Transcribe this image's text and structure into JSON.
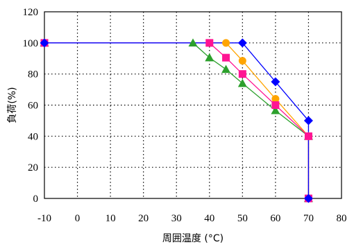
{
  "chart_data": {
    "type": "line",
    "title": "",
    "xlabel": "周囲温度 (°C)",
    "ylabel": "負荷(%)",
    "xlim": [
      -10,
      80
    ],
    "ylim": [
      0,
      120
    ],
    "x_ticks": [
      -10,
      0,
      10,
      20,
      30,
      40,
      50,
      60,
      70,
      80
    ],
    "y_ticks": [
      0,
      20,
      40,
      60,
      80,
      100,
      120
    ],
    "x_tick_labels": [
      "-10",
      "0",
      "10",
      "20",
      "30",
      "40",
      "50",
      "60",
      "70",
      "80"
    ],
    "y_tick_labels": [
      "0",
      "20",
      "40",
      "60",
      "80",
      "100",
      "120"
    ],
    "grid": "dotted",
    "legend": "none",
    "series": [
      {
        "color": "#2ca02c",
        "marker": "triangle",
        "points": [
          [
            -10,
            100
          ],
          [
            35,
            100
          ],
          [
            40,
            90.5
          ],
          [
            45,
            83
          ],
          [
            50,
            74
          ],
          [
            60,
            56.5
          ],
          [
            70,
            40
          ],
          [
            70,
            0
          ]
        ]
      },
      {
        "color": "#ffa500",
        "marker": "circle",
        "points": [
          [
            -10,
            100
          ],
          [
            45,
            100
          ],
          [
            50,
            88.5
          ],
          [
            60,
            64
          ],
          [
            70,
            40
          ],
          [
            70,
            0
          ]
        ]
      },
      {
        "color": "#ff1493",
        "marker": "square",
        "points": [
          [
            -10,
            100
          ],
          [
            40,
            100
          ],
          [
            45,
            90.5
          ],
          [
            50,
            80
          ],
          [
            60,
            60
          ],
          [
            70,
            40
          ],
          [
            70,
            0
          ]
        ]
      },
      {
        "color": "#0000ff",
        "marker": "diamond",
        "points": [
          [
            -10,
            100
          ],
          [
            50,
            100
          ],
          [
            60,
            75
          ],
          [
            70,
            50
          ],
          [
            70,
            0
          ]
        ]
      }
    ]
  }
}
